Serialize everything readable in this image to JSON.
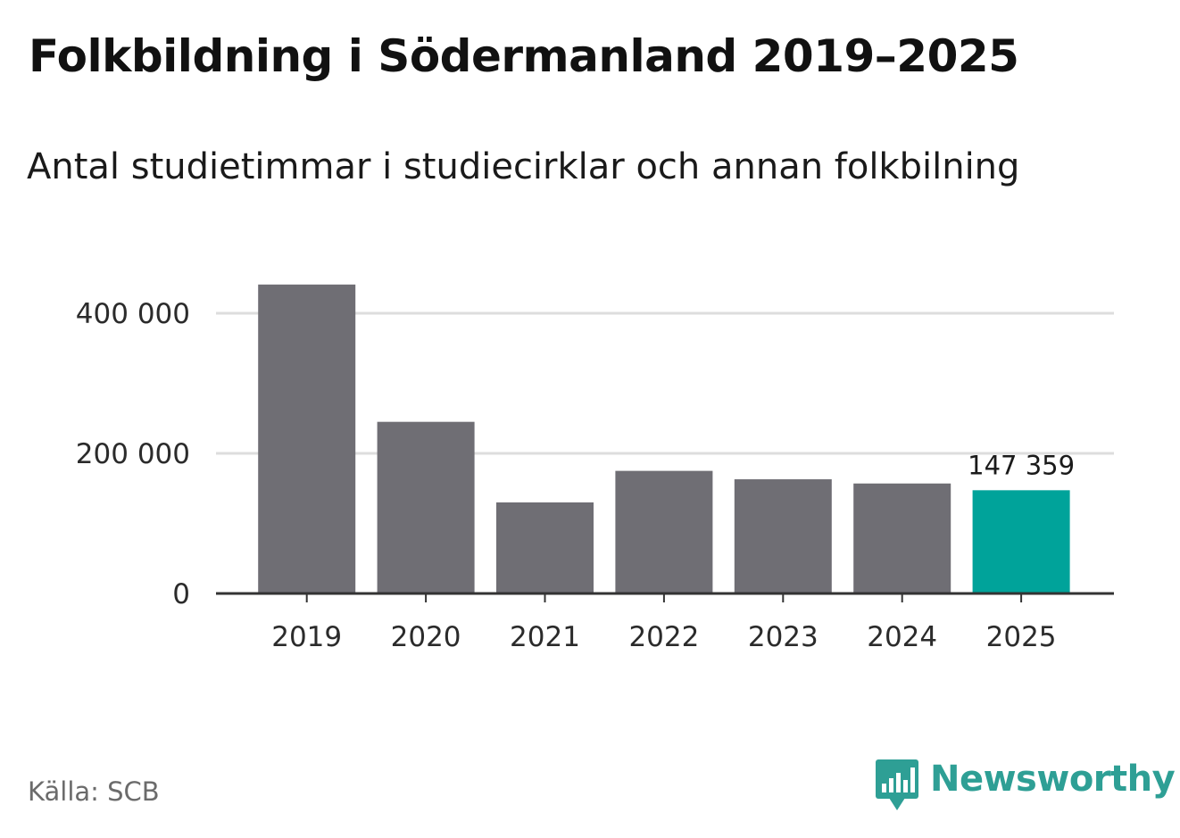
{
  "header": {
    "title": "Folkbildning i Södermanland 2019–2025",
    "subtitle": "Antal studietimmar i studiecirklar och annan folkbilning"
  },
  "footer": {
    "source": "Källa: SCB",
    "brand_name": "Newsworthy",
    "brand_icon": "bar-chart-bubble-icon"
  },
  "colors": {
    "bar_default": "#6f6e74",
    "bar_highlight": "#00a39a",
    "brand": "#2e9f95",
    "grid": "#dddddd",
    "axis": "#333333"
  },
  "chart_data": {
    "type": "bar",
    "title": "Folkbildning i Södermanland 2019–2025",
    "subtitle": "Antal studietimmar i studiecirklar och annan folkbilning",
    "xlabel": "",
    "ylabel": "",
    "categories": [
      "2019",
      "2020",
      "2021",
      "2022",
      "2023",
      "2024",
      "2025"
    ],
    "values": [
      441000,
      245000,
      130000,
      175000,
      163000,
      157000,
      147359
    ],
    "highlight_index": 6,
    "data_labels": [
      {
        "index": 6,
        "text": "147 359"
      }
    ],
    "ylim": [
      0,
      450000
    ],
    "yticks": [
      0,
      200000,
      400000
    ],
    "ytick_labels": [
      "0",
      "200 000",
      "400 000"
    ],
    "grid": true,
    "legend": "none"
  }
}
